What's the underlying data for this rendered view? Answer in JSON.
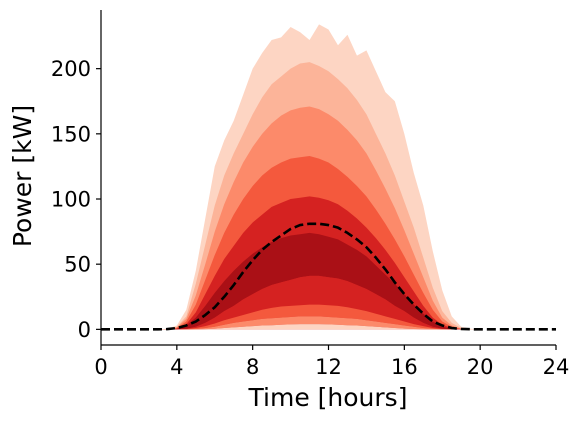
{
  "chart_data": {
    "type": "area",
    "title": "",
    "xlabel": "Time [hours]",
    "ylabel": "Power [kW]",
    "xlim": [
      0,
      24
    ],
    "ylim": [
      -12,
      245
    ],
    "xticks": [
      0,
      4,
      8,
      12,
      16,
      20,
      24
    ],
    "yticks": [
      0,
      50,
      100,
      150,
      200
    ],
    "grid": false,
    "legend": "none",
    "x": [
      0,
      1,
      2,
      3,
      3.5,
      4,
      4.5,
      5,
      5.5,
      6,
      6.5,
      7,
      7.5,
      8,
      8.5,
      9,
      9.5,
      10,
      10.5,
      11,
      11.5,
      12,
      12.5,
      13,
      13.5,
      14,
      14.5,
      15,
      15.5,
      16,
      16.5,
      17,
      17.5,
      18,
      18.5,
      19,
      19.5,
      20,
      21,
      22,
      23,
      24
    ],
    "bands": [
      {
        "lower": [
          0,
          0,
          0,
          0,
          0,
          0,
          0,
          0,
          0,
          0,
          0,
          0,
          0,
          0,
          0,
          0,
          0,
          0,
          0,
          0,
          0,
          0,
          0,
          0,
          0,
          0,
          0,
          0,
          0,
          0,
          0,
          0,
          0,
          0,
          0,
          0,
          0,
          0,
          0,
          0,
          0,
          0
        ],
        "upper": [
          0,
          0,
          0,
          0,
          0.5,
          3,
          15,
          45,
          85,
          125,
          145,
          160,
          180,
          200,
          212,
          222,
          224,
          232,
          228,
          222,
          234,
          230,
          218,
          226,
          210,
          214,
          198,
          182,
          175,
          150,
          120,
          95,
          60,
          30,
          10,
          2,
          0.5,
          0,
          0,
          0,
          0,
          0
        ],
        "color": "#fdd5c3"
      },
      {
        "lower": [
          0,
          0,
          0,
          0,
          0,
          0,
          0,
          0,
          0,
          0,
          0,
          0,
          0,
          0,
          0,
          0,
          0,
          0,
          0,
          0,
          0,
          0,
          0,
          0,
          0,
          0,
          0,
          0,
          0,
          0,
          0,
          0,
          0,
          0,
          0,
          0,
          0,
          0,
          0,
          0,
          0,
          0
        ],
        "upper": [
          0,
          0,
          0,
          0,
          0.3,
          2,
          10,
          35,
          65,
          95,
          118,
          135,
          150,
          165,
          178,
          188,
          194,
          200,
          204,
          205,
          202,
          198,
          192,
          185,
          176,
          165,
          150,
          135,
          118,
          98,
          78,
          55,
          32,
          14,
          5,
          1,
          0.2,
          0,
          0,
          0,
          0,
          0
        ],
        "color": "#fcb499"
      },
      {
        "lower": [
          0,
          0,
          0,
          0,
          0,
          0,
          0,
          0,
          0,
          0,
          0,
          0,
          0,
          0,
          0,
          0,
          0,
          0,
          0,
          0,
          0,
          0,
          0,
          0,
          0,
          0,
          0,
          0,
          0,
          0,
          0,
          0,
          0,
          0,
          0,
          0,
          0,
          0,
          0,
          0,
          0,
          0
        ],
        "upper": [
          0,
          0,
          0,
          0,
          0.2,
          1.5,
          8,
          26,
          50,
          75,
          96,
          113,
          128,
          140,
          150,
          158,
          164,
          168,
          170,
          171,
          169,
          165,
          160,
          153,
          145,
          135,
          122,
          108,
          93,
          76,
          58,
          40,
          22,
          9,
          3,
          0.6,
          0,
          0,
          0,
          0,
          0,
          0
        ],
        "color": "#fc8a6a"
      },
      {
        "lower": [
          0,
          0,
          0,
          0,
          0,
          0,
          0,
          0,
          0,
          0,
          0,
          0,
          0,
          0,
          0,
          0,
          0,
          0,
          0,
          0,
          0,
          0,
          0,
          0,
          0,
          0,
          0,
          0,
          0,
          0,
          0,
          0,
          0,
          0,
          0,
          0,
          0,
          0,
          0,
          0,
          0,
          0
        ],
        "upper": [
          0,
          0,
          0,
          0,
          0.1,
          1,
          6,
          19,
          38,
          57,
          74,
          88,
          100,
          110,
          118,
          124,
          128,
          131,
          132,
          133,
          131,
          128,
          123,
          117,
          110,
          102,
          92,
          81,
          69,
          56,
          42,
          28,
          15,
          6,
          2,
          0.4,
          0,
          0,
          0,
          0,
          0,
          0
        ],
        "color": "#f4593d"
      },
      {
        "lower": [
          0,
          0,
          0,
          0,
          0,
          0,
          0,
          0,
          0,
          0,
          0,
          0,
          0,
          0,
          0,
          0,
          0,
          0,
          0,
          0,
          0,
          0,
          0,
          0,
          0,
          0,
          0,
          0,
          0,
          0,
          0,
          0,
          0,
          0,
          0,
          0,
          0,
          0,
          0,
          0,
          0,
          0
        ],
        "upper": [
          0,
          0,
          0,
          0,
          0,
          0.5,
          4,
          13,
          27,
          41,
          54,
          64,
          74,
          82,
          88,
          94,
          97,
          100,
          101,
          102,
          101,
          99,
          96,
          91,
          85,
          78,
          70,
          61,
          51,
          40,
          29,
          18,
          9,
          3.5,
          1,
          0.2,
          0,
          0,
          0,
          0,
          0,
          0
        ],
        "color": "#d52221"
      },
      {
        "lower": [
          0,
          0,
          0,
          0,
          0,
          0,
          0.5,
          2,
          5,
          9,
          14,
          18,
          23,
          27,
          31,
          34,
          36,
          38,
          40,
          41,
          41,
          40,
          39,
          37,
          34,
          31,
          27,
          23,
          18,
          14,
          9,
          5,
          2,
          0.5,
          0,
          0,
          0,
          0,
          0,
          0,
          0,
          0
        ],
        "upper": [
          0,
          0,
          0,
          0,
          0,
          0.3,
          3,
          9,
          18,
          28,
          37,
          45,
          52,
          58,
          63,
          67,
          70,
          72,
          73,
          74,
          73,
          71,
          69,
          65,
          61,
          56,
          49,
          42,
          35,
          27,
          19,
          12,
          6,
          2,
          0.5,
          0,
          0,
          0,
          0,
          0,
          0,
          0
        ],
        "color": "#aa1016"
      },
      {
        "lower": [
          0,
          0,
          0,
          0,
          0,
          0,
          0.2,
          1,
          2.5,
          4.5,
          7,
          9,
          11,
          13,
          15,
          16.5,
          17.5,
          18,
          18.5,
          19,
          19,
          18.5,
          18,
          17,
          15.5,
          14,
          12,
          10,
          8,
          6,
          4,
          2.5,
          1,
          0.3,
          0,
          0,
          0,
          0,
          0,
          0,
          0,
          0
        ],
        "upper": [
          0,
          0,
          0,
          0,
          0,
          0,
          0.5,
          2,
          5,
          9,
          14,
          18,
          23,
          27,
          31,
          34,
          36,
          38,
          40,
          41,
          41,
          40,
          39,
          37,
          34,
          31,
          27,
          23,
          18,
          14,
          9,
          5,
          2,
          0.5,
          0,
          0,
          0,
          0,
          0,
          0,
          0,
          0
        ],
        "color": "#d52221"
      },
      {
        "lower": [
          0,
          0,
          0,
          0,
          0,
          0,
          0,
          0.3,
          1,
          2,
          3.5,
          5,
          6,
          7,
          8,
          8.5,
          9,
          9.5,
          10,
          10,
          10,
          9.5,
          9,
          8.5,
          8,
          7,
          6,
          5,
          4,
          3,
          2,
          1,
          0.5,
          0,
          0,
          0,
          0,
          0,
          0,
          0,
          0,
          0
        ],
        "upper": [
          0,
          0,
          0,
          0,
          0,
          0,
          0.2,
          1,
          2.5,
          4.5,
          7,
          9,
          11,
          13,
          15,
          16.5,
          17.5,
          18,
          18.5,
          19,
          19,
          18.5,
          18,
          17,
          15.5,
          14,
          12,
          10,
          8,
          6,
          4,
          2.5,
          1,
          0.3,
          0,
          0,
          0,
          0,
          0,
          0,
          0,
          0
        ],
        "color": "#f4593d"
      },
      {
        "lower": [
          0,
          0,
          0,
          0,
          0,
          0,
          0,
          0,
          0.2,
          0.5,
          1,
          1.5,
          2,
          2.5,
          3,
          3.2,
          3.5,
          3.8,
          4,
          4,
          4,
          3.8,
          3.5,
          3.2,
          3,
          2.5,
          2,
          1.5,
          1,
          0.6,
          0.3,
          0.1,
          0,
          0,
          0,
          0,
          0,
          0,
          0,
          0,
          0,
          0
        ],
        "upper": [
          0,
          0,
          0,
          0,
          0,
          0,
          0,
          0.3,
          1,
          2,
          3.5,
          5,
          6,
          7,
          8,
          8.5,
          9,
          9.5,
          10,
          10,
          10,
          9.5,
          9,
          8.5,
          8,
          7,
          6,
          5,
          4,
          3,
          2,
          1,
          0.5,
          0,
          0,
          0,
          0,
          0,
          0,
          0,
          0,
          0
        ],
        "color": "#fc8a6a"
      },
      {
        "lower": [
          0,
          0,
          0,
          0,
          0,
          0,
          0,
          0,
          0,
          0,
          0,
          0,
          0,
          0,
          0,
          0,
          0,
          0,
          0,
          0,
          0,
          0,
          0,
          0,
          0,
          0,
          0,
          0,
          0,
          0,
          0,
          0,
          0,
          0,
          0,
          0,
          0,
          0,
          0,
          0,
          0,
          0
        ],
        "upper": [
          0,
          0,
          0,
          0,
          0,
          0,
          0,
          0,
          0.2,
          0.5,
          1,
          1.5,
          2,
          2.5,
          3,
          3.2,
          3.5,
          3.8,
          4,
          4,
          4,
          3.8,
          3.5,
          3.2,
          3,
          2.5,
          2,
          1.5,
          1,
          0.6,
          0.3,
          0.1,
          0,
          0,
          0,
          0,
          0,
          0,
          0,
          0,
          0,
          0
        ],
        "color": "#fdd5c3"
      }
    ],
    "series": [
      {
        "style": "dashed",
        "color": "#000000",
        "values": [
          0,
          0,
          0,
          0,
          0.2,
          1,
          3,
          6,
          11,
          17,
          25,
          34,
          44,
          53,
          61,
          67,
          72,
          77,
          80,
          81,
          81,
          80,
          78,
          74,
          69,
          63,
          55,
          46,
          36,
          27,
          19,
          12,
          6,
          3,
          1,
          0.3,
          0.1,
          0,
          0,
          0,
          0,
          0
        ]
      }
    ]
  }
}
